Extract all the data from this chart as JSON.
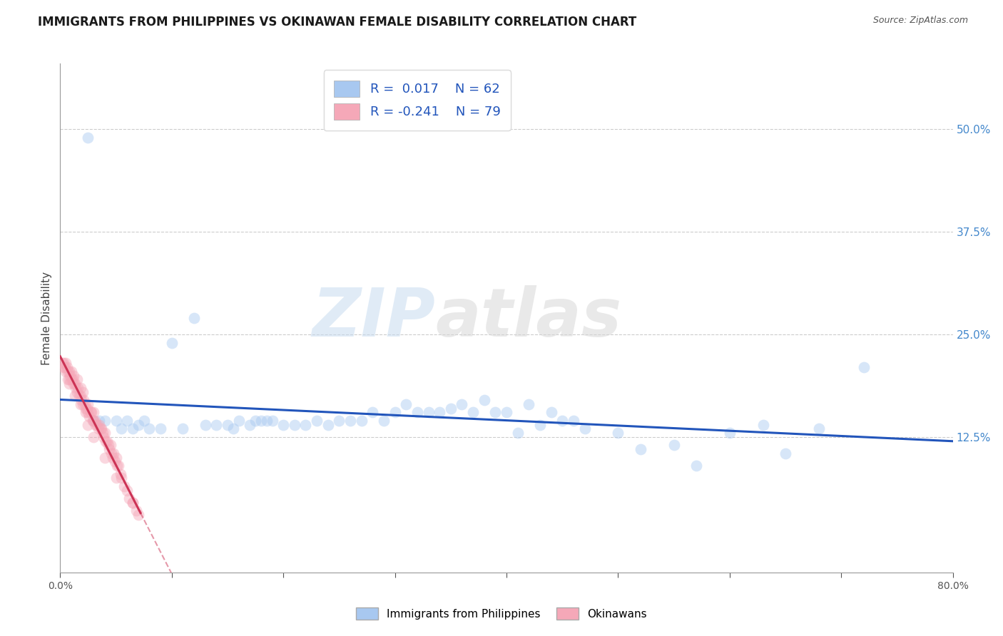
{
  "title": "IMMIGRANTS FROM PHILIPPINES VS OKINAWAN FEMALE DISABILITY CORRELATION CHART",
  "source": "Source: ZipAtlas.com",
  "xlabel": "",
  "ylabel": "Female Disability",
  "legend_labels": [
    "Immigrants from Philippines",
    "Okinawans"
  ],
  "blue_R": 0.017,
  "blue_N": 62,
  "pink_R": -0.241,
  "pink_N": 79,
  "blue_color": "#A8C8F0",
  "pink_color": "#F5A8B8",
  "blue_line_color": "#2255BB",
  "pink_line_color": "#CC3355",
  "watermark": "ZIPatlas",
  "xlim": [
    0.0,
    0.8
  ],
  "ylim": [
    -0.04,
    0.58
  ],
  "ytick_right_vals": [
    0.125,
    0.25,
    0.375,
    0.5
  ],
  "marker_size": 130,
  "marker_alpha": 0.45,
  "grid_color": "#CCCCCC",
  "grid_style": "--",
  "bg_color": "#FFFFFF",
  "blue_x": [
    0.025,
    0.03,
    0.035,
    0.04,
    0.05,
    0.055,
    0.06,
    0.065,
    0.07,
    0.075,
    0.08,
    0.09,
    0.1,
    0.11,
    0.12,
    0.13,
    0.14,
    0.15,
    0.155,
    0.16,
    0.17,
    0.175,
    0.18,
    0.185,
    0.19,
    0.2,
    0.21,
    0.22,
    0.23,
    0.24,
    0.25,
    0.26,
    0.27,
    0.28,
    0.29,
    0.3,
    0.31,
    0.32,
    0.33,
    0.34,
    0.35,
    0.36,
    0.37,
    0.38,
    0.39,
    0.4,
    0.41,
    0.42,
    0.43,
    0.44,
    0.45,
    0.46,
    0.47,
    0.5,
    0.52,
    0.55,
    0.57,
    0.6,
    0.63,
    0.65,
    0.68,
    0.72
  ],
  "blue_y": [
    0.49,
    0.145,
    0.145,
    0.145,
    0.145,
    0.135,
    0.145,
    0.135,
    0.14,
    0.145,
    0.135,
    0.135,
    0.24,
    0.135,
    0.27,
    0.14,
    0.14,
    0.14,
    0.135,
    0.145,
    0.14,
    0.145,
    0.145,
    0.145,
    0.145,
    0.14,
    0.14,
    0.14,
    0.145,
    0.14,
    0.145,
    0.145,
    0.145,
    0.155,
    0.145,
    0.155,
    0.165,
    0.155,
    0.155,
    0.155,
    0.16,
    0.165,
    0.155,
    0.17,
    0.155,
    0.155,
    0.13,
    0.165,
    0.14,
    0.155,
    0.145,
    0.145,
    0.135,
    0.13,
    0.11,
    0.115,
    0.09,
    0.13,
    0.14,
    0.105,
    0.135,
    0.21
  ],
  "pink_x": [
    0.002,
    0.003,
    0.004,
    0.005,
    0.005,
    0.006,
    0.007,
    0.007,
    0.008,
    0.008,
    0.009,
    0.01,
    0.01,
    0.011,
    0.012,
    0.012,
    0.013,
    0.014,
    0.015,
    0.015,
    0.016,
    0.017,
    0.018,
    0.018,
    0.019,
    0.02,
    0.02,
    0.021,
    0.022,
    0.023,
    0.023,
    0.024,
    0.025,
    0.025,
    0.026,
    0.027,
    0.028,
    0.029,
    0.03,
    0.03,
    0.031,
    0.032,
    0.033,
    0.034,
    0.035,
    0.036,
    0.037,
    0.038,
    0.039,
    0.04,
    0.041,
    0.042,
    0.043,
    0.044,
    0.045,
    0.046,
    0.047,
    0.048,
    0.049,
    0.05,
    0.051,
    0.052,
    0.054,
    0.055,
    0.057,
    0.06,
    0.062,
    0.065,
    0.068,
    0.07,
    0.003,
    0.008,
    0.013,
    0.018,
    0.025,
    0.03,
    0.04,
    0.05,
    0.065
  ],
  "pink_y": [
    0.215,
    0.215,
    0.21,
    0.215,
    0.205,
    0.21,
    0.205,
    0.195,
    0.205,
    0.195,
    0.2,
    0.205,
    0.195,
    0.195,
    0.2,
    0.19,
    0.19,
    0.185,
    0.195,
    0.18,
    0.185,
    0.175,
    0.185,
    0.175,
    0.17,
    0.18,
    0.165,
    0.17,
    0.165,
    0.16,
    0.155,
    0.16,
    0.165,
    0.155,
    0.15,
    0.155,
    0.155,
    0.145,
    0.155,
    0.145,
    0.145,
    0.14,
    0.14,
    0.135,
    0.14,
    0.135,
    0.135,
    0.13,
    0.125,
    0.13,
    0.12,
    0.12,
    0.115,
    0.11,
    0.115,
    0.105,
    0.1,
    0.105,
    0.095,
    0.1,
    0.09,
    0.09,
    0.08,
    0.075,
    0.065,
    0.06,
    0.05,
    0.045,
    0.035,
    0.03,
    0.21,
    0.19,
    0.175,
    0.165,
    0.14,
    0.125,
    0.1,
    0.075,
    0.045
  ]
}
